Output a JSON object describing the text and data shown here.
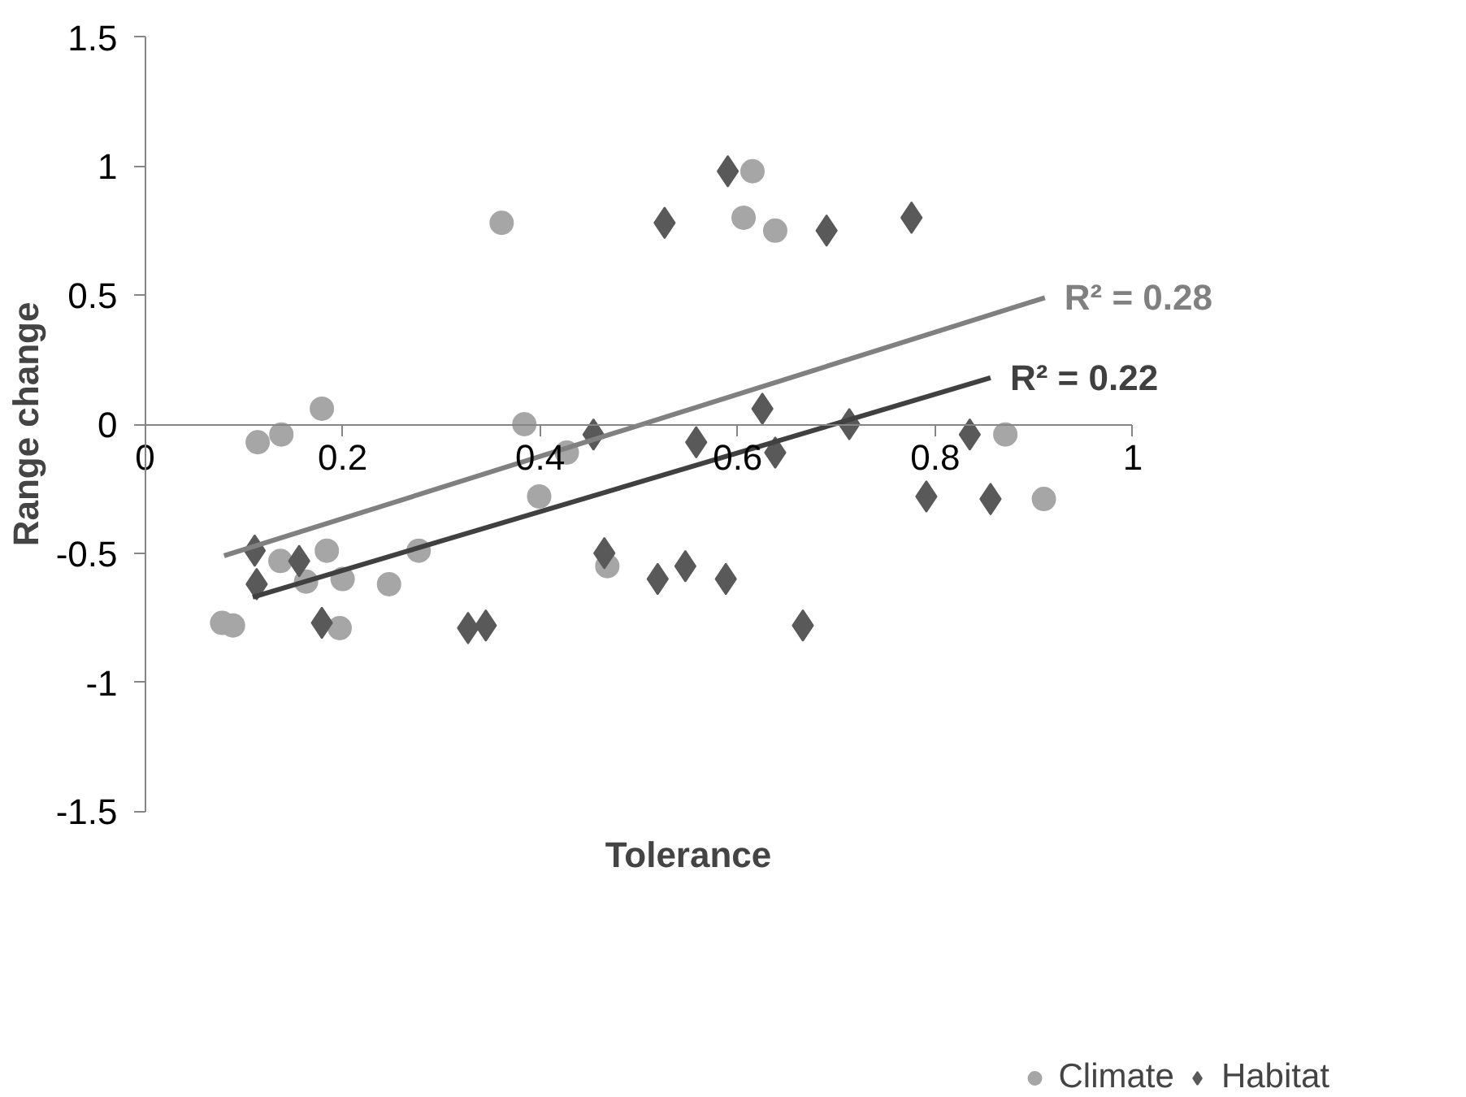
{
  "chart_data": {
    "type": "scatter",
    "xlabel": "Tolerance",
    "ylabel": "Range change",
    "xlim": [
      0,
      1
    ],
    "ylim": [
      -1.5,
      1.5
    ],
    "xticks": [
      0,
      0.2,
      0.4,
      0.6,
      0.8,
      1
    ],
    "yticks": [
      -1.5,
      -1,
      -0.5,
      0,
      0.5,
      1,
      1.5
    ],
    "grid": false,
    "legend": "bottom right",
    "series": [
      {
        "name": "Climate",
        "color": "#a6a6a6",
        "marker": "circle",
        "x": [
          0.361,
          0.179,
          0.114,
          0.138,
          0.384,
          0.427,
          0.399,
          0.137,
          0.184,
          0.277,
          0.163,
          0.2,
          0.247,
          0.078,
          0.089,
          0.197,
          0.468,
          0.615,
          0.606,
          0.638,
          0.871,
          0.91
        ],
        "values": [
          0.78,
          0.06,
          -0.07,
          -0.04,
          0.0,
          -0.11,
          -0.28,
          -0.53,
          -0.49,
          -0.49,
          -0.61,
          -0.6,
          -0.62,
          -0.77,
          -0.78,
          -0.79,
          -0.55,
          0.98,
          0.8,
          0.75,
          -0.04,
          -0.29
        ]
      },
      {
        "name": "Habitat",
        "color": "#595959",
        "marker": "diamond",
        "x": [
          0.526,
          0.111,
          0.156,
          0.113,
          0.179,
          0.327,
          0.345,
          0.454,
          0.465,
          0.519,
          0.547,
          0.59,
          0.69,
          0.776,
          0.625,
          0.558,
          0.638,
          0.713,
          0.835,
          0.791,
          0.856,
          0.588,
          0.666
        ],
        "values": [
          0.78,
          -0.49,
          -0.53,
          -0.62,
          -0.77,
          -0.79,
          -0.78,
          -0.04,
          -0.5,
          -0.6,
          -0.55,
          0.98,
          0.75,
          0.8,
          0.06,
          -0.07,
          -0.11,
          0.0,
          -0.04,
          -0.28,
          -0.29,
          -0.6,
          -0.78
        ]
      },
      {
        "type": "line",
        "color": "#808080",
        "x": [
          0.08,
          0.911
        ],
        "values": [
          -0.51,
          0.49
        ]
      },
      {
        "type": "line",
        "color": "#404040",
        "x": [
          0.109,
          0.856
        ],
        "values": [
          -0.67,
          0.18
        ]
      }
    ],
    "annotations": [
      {
        "text": "R² = 0.28",
        "x": 0.911,
        "y": 0.49
      },
      {
        "text": "R² = 0.22",
        "x": 0.856,
        "y": 0.18
      }
    ]
  }
}
